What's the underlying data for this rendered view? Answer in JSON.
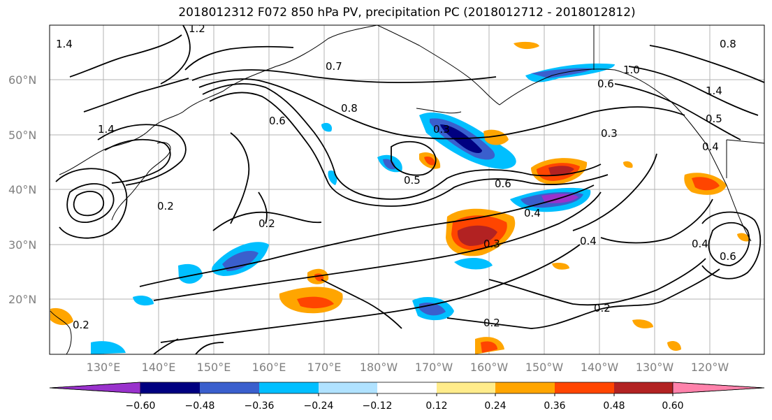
{
  "title": "2018012312 F072 850 hPa PV, precipitation PC (2018012712 - 2018012812)",
  "lat_labels": [
    "60°N",
    "50°N",
    "40°N",
    "30°N",
    "20°N"
  ],
  "lon_labels": [
    "130°E",
    "140°E",
    "150°E",
    "160°E",
    "170°E",
    "180°W",
    "170°W",
    "160°W",
    "150°W",
    "140°W",
    "130°W",
    "120°W"
  ],
  "colorbar": {
    "ticks": [
      "−0.60",
      "−0.48",
      "−0.36",
      "−0.24",
      "−0.12",
      "0.12",
      "0.24",
      "0.36",
      "0.48",
      "0.60"
    ],
    "colors": [
      "#9932cc",
      "#000080",
      "#3a5fcd",
      "#00bfff",
      "#b0e2ff",
      "#ffffff",
      "#ffec8b",
      "#ffa500",
      "#ff4500",
      "#b22222",
      "#ff82ab"
    ]
  },
  "contour_labels": [
    "1.2",
    "1.4",
    "0.8",
    "0.7",
    "0.6",
    "1.4",
    "0.2",
    "0.5",
    "0.6",
    "0.3",
    "0.2",
    "0.4",
    "0.2",
    "0.6",
    "0.3",
    "0.4",
    "0.4",
    "0.6",
    "0.2",
    "0.2",
    "1.0",
    "0.8",
    "1.4",
    "0.3",
    "0.4",
    "0.5"
  ]
}
